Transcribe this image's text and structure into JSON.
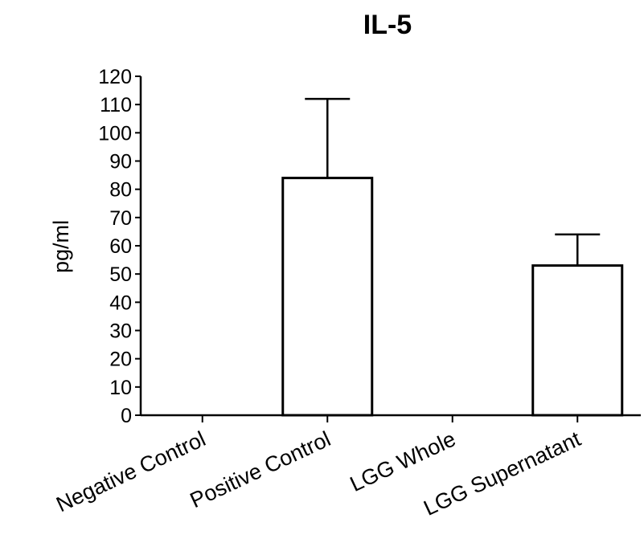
{
  "chart_data": {
    "type": "bar",
    "title": "IL-5",
    "xlabel": "",
    "ylabel": "pg/ml",
    "categories": [
      "Negative Control",
      "Positive Control",
      "LGG Whole",
      "LGG Supernatant"
    ],
    "values": [
      0,
      84,
      0,
      53
    ],
    "error_upper": [
      0,
      112,
      0,
      64
    ],
    "ylim": [
      0,
      120
    ],
    "yticks": [
      0,
      10,
      20,
      30,
      40,
      50,
      60,
      70,
      80,
      90,
      100,
      110,
      120
    ],
    "bar_fill": "#ffffff",
    "bar_stroke": "#000000",
    "grid": false,
    "legend": "none"
  }
}
